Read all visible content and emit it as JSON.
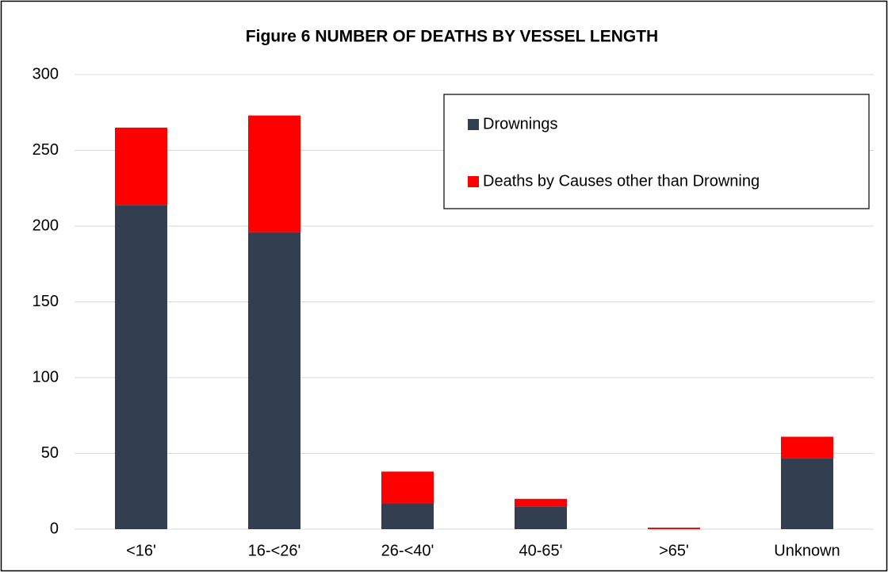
{
  "chart_data": {
    "type": "stacked_bar",
    "title": "Figure 6 NUMBER OF DEATHS BY VESSEL LENGTH",
    "categories": [
      "<16'",
      "16-<26'",
      "26-<40'",
      "40-65'",
      ">65'",
      "Unknown"
    ],
    "series": [
      {
        "name": "Drownings",
        "color": "#333f50",
        "values": [
          214,
          196,
          17,
          15,
          0,
          47
        ]
      },
      {
        "name": "Deaths by Causes other than Drowning",
        "color": "#ff0000",
        "values": [
          51,
          77,
          21,
          5,
          1,
          14
        ]
      }
    ],
    "ylim": [
      0,
      300
    ],
    "yticks": [
      0,
      50,
      100,
      150,
      200,
      250,
      300
    ],
    "grid": true,
    "legend": "upper right"
  }
}
